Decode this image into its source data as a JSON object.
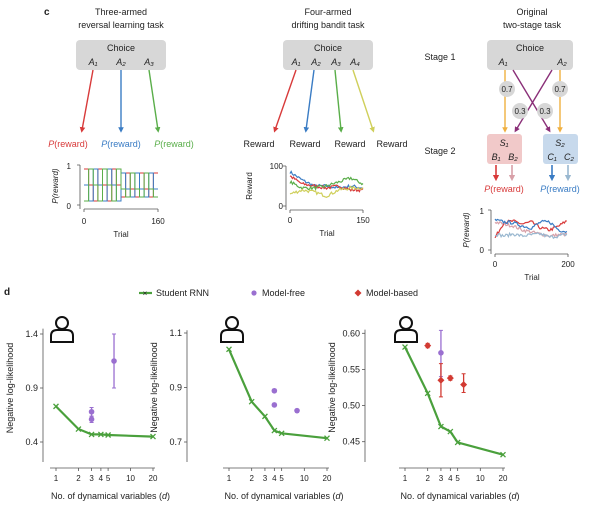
{
  "panel_c": {
    "label": "c",
    "task1": {
      "title_line1": "Three-armed",
      "title_line2": "reversal learning task",
      "choice": "Choice",
      "arms": [
        "A₁",
        "A₂",
        "A₃"
      ],
      "outcomes": [
        "(reward)",
        "(reward)",
        "(reward)"
      ],
      "outcome_prefix": "P",
      "colors": [
        "#d83a3a",
        "#3a7cc4",
        "#5aae4a"
      ],
      "ylabel": "P(reward)",
      "xlabel": "Trial",
      "yticks": [
        "0",
        "1"
      ],
      "xticks": [
        "0",
        "160"
      ]
    },
    "task2": {
      "title_line1": "Four-armed",
      "title_line2": "drifting bandit task",
      "choice": "Choice",
      "arms": [
        "A₁",
        "A₂",
        "A₃",
        "A₄"
      ],
      "outcomes": [
        "Reward",
        "Reward",
        "Reward",
        "Reward"
      ],
      "colors": [
        "#d83a3a",
        "#3a7cc4",
        "#5aae4a",
        "#cfcf5a"
      ],
      "ylabel": "Reward",
      "xlabel": "Trial",
      "yticks": [
        "0",
        "100"
      ],
      "xticks": [
        "0",
        "150"
      ]
    },
    "task3": {
      "title_line1": "Original",
      "title_line2": "two-stage task",
      "stage1": "Stage 1",
      "stage2": "Stage 2",
      "choice": "Choice",
      "arms": [
        "A₁",
        "A₂"
      ],
      "transitions": [
        "0.7",
        "0.3",
        "0.3",
        "0.7"
      ],
      "state1": "S₁",
      "state1_actions": [
        "B₁",
        "B₂"
      ],
      "state2": "S₂",
      "state2_actions": [
        "C₁",
        "C₂"
      ],
      "outcomes": [
        "(reward)",
        "(reward)"
      ],
      "outcome_prefix": "P",
      "ylabel": "P(reward)",
      "xlabel": "Trial",
      "yticks": [
        "0",
        "1"
      ],
      "xticks": [
        "0",
        "200"
      ]
    }
  },
  "panel_d": {
    "label": "d",
    "legend": [
      {
        "name": "Student RNN",
        "color": "#4aa03c",
        "marker": "line-x"
      },
      {
        "name": "Model-free",
        "color": "#9a6fd0",
        "marker": "dot"
      },
      {
        "name": "Model-based",
        "color": "#d23a32",
        "marker": "diamond"
      }
    ]
  },
  "chart_data": [
    {
      "type": "line",
      "title": "",
      "xlabel": "",
      "ylabel": "P(reward)",
      "x_range": [
        0,
        160
      ],
      "ylim": [
        0,
        1
      ],
      "description_series": "reversal",
      "series": [
        {
          "color": "#d83a3a",
          "values": [
            0.9,
            0.5,
            0.1
          ]
        },
        {
          "color": "#3a7cc4",
          "values": [
            0.5,
            0.1,
            0.9
          ]
        },
        {
          "color": "#5aae4a",
          "values": [
            0.1,
            0.9,
            0.5
          ]
        }
      ],
      "block_probabilities": [
        [
          0.9,
          0.5,
          0.1
        ],
        [
          0.8,
          0.4,
          0.2
        ]
      ],
      "block_switch_trial": 80
    },
    {
      "type": "line",
      "xlabel": "Trial",
      "ylabel": "Reward",
      "x": [
        0,
        25,
        50,
        75,
        100,
        125,
        150
      ],
      "ylim": [
        0,
        100
      ],
      "series": [
        {
          "color": "#3a7cc4",
          "values": [
            85,
            65,
            50,
            50,
            45,
            50,
            45
          ]
        },
        {
          "color": "#d83a3a",
          "values": [
            75,
            55,
            50,
            45,
            50,
            40,
            40
          ]
        },
        {
          "color": "#5aae4a",
          "values": [
            60,
            45,
            45,
            50,
            60,
            70,
            55
          ]
        },
        {
          "color": "#cfcf5a",
          "values": [
            30,
            40,
            35,
            25,
            40,
            45,
            45
          ]
        }
      ]
    },
    {
      "type": "line",
      "xlabel": "Trial",
      "ylabel": "P(reward)",
      "x": [
        0,
        25,
        50,
        75,
        100,
        125,
        150,
        175,
        200
      ],
      "ylim": [
        0,
        1
      ],
      "series": [
        {
          "color": "#d83a3a",
          "values": [
            0.3,
            0.7,
            0.72,
            0.65,
            0.7,
            0.55,
            0.5,
            0.6,
            0.75
          ]
        },
        {
          "color": "#d8a0a8",
          "values": [
            0.7,
            0.65,
            0.6,
            0.5,
            0.45,
            0.4,
            0.35,
            0.38,
            0.4
          ]
        },
        {
          "color": "#3a7cc4",
          "values": [
            0.75,
            0.7,
            0.68,
            0.6,
            0.55,
            0.7,
            0.7,
            0.5,
            0.45
          ]
        },
        {
          "color": "#9ab8d0",
          "values": [
            0.4,
            0.35,
            0.4,
            0.35,
            0.38,
            0.4,
            0.32,
            0.35,
            0.4
          ]
        }
      ]
    },
    {
      "type": "line",
      "xscale": "log",
      "xlabel": "No. of dynamical variables (d)",
      "ylabel": "Negative log-likelihood",
      "xticks": [
        1,
        2,
        3,
        4,
        5,
        10,
        20
      ],
      "yticks": [
        0.4,
        0.9,
        1.4
      ],
      "ylim": [
        0.3,
        1.45
      ],
      "series": [
        {
          "name": "Student RNN",
          "x": [
            1,
            2,
            3,
            4,
            5,
            20
          ],
          "values": [
            0.73,
            0.52,
            0.47,
            0.47,
            0.465,
            0.45
          ],
          "err": 0.01
        },
        {
          "name": "Model-free",
          "x": [
            3,
            3,
            6
          ],
          "values": [
            0.68,
            0.61,
            1.15
          ],
          "err_low": [
            0.63,
            0.58,
            0.9
          ],
          "err_high": [
            0.72,
            0.64,
            1.4
          ]
        }
      ]
    },
    {
      "type": "line",
      "xscale": "log",
      "xlabel": "No. of dynamical variables (d)",
      "ylabel": "Negative log-likelihood",
      "xticks": [
        1,
        2,
        3,
        4,
        5,
        10,
        20
      ],
      "yticks": [
        0.7,
        0.9,
        1.1
      ],
      "ylim": [
        0.65,
        1.11
      ],
      "series": [
        {
          "name": "Student RNN",
          "x": [
            1,
            2,
            3,
            4,
            5,
            20
          ],
          "values": [
            1.04,
            0.848,
            0.794,
            0.742,
            0.732,
            0.714
          ],
          "err": 0.006
        },
        {
          "name": "Model-free",
          "x": [
            4,
            4,
            8
          ],
          "values": [
            0.888,
            0.836,
            0.815
          ],
          "err_low": [
            0.882,
            0.83,
            0.81
          ],
          "err_high": [
            0.894,
            0.842,
            0.82
          ]
        }
      ]
    },
    {
      "type": "line",
      "xscale": "log",
      "xlabel": "No. of dynamical variables (d)",
      "ylabel": "Negative log-likelihood",
      "xticks": [
        1,
        2,
        3,
        4,
        5,
        10,
        20
      ],
      "yticks": [
        0.45,
        0.5,
        0.55,
        0.6
      ],
      "ylim": [
        0.425,
        0.605
      ],
      "ytick_labels": [
        "0.45",
        "0.50",
        "0.55",
        "0.60"
      ],
      "series": [
        {
          "name": "Student RNN",
          "x": [
            1,
            2,
            3,
            4,
            5,
            20
          ],
          "values": [
            0.581,
            0.517,
            0.471,
            0.464,
            0.449,
            0.432
          ],
          "err": 0.002
        },
        {
          "name": "Model-free",
          "x": [
            3
          ],
          "values": [
            0.573
          ],
          "err_low": [
            0.54
          ],
          "err_high": [
            0.604
          ]
        },
        {
          "name": "Model-based",
          "x": [
            2,
            3,
            4,
            6
          ],
          "values": [
            0.583,
            0.535,
            0.538,
            0.529
          ],
          "err_low": [
            0.58,
            0.512,
            0.535,
            0.518
          ],
          "err_high": [
            0.586,
            0.558,
            0.541,
            0.544
          ]
        }
      ]
    }
  ]
}
